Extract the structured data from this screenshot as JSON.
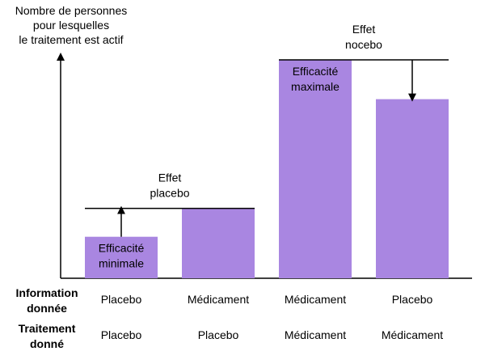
{
  "chart_data": {
    "type": "bar",
    "ylabel": [
      "Nombre de personnes",
      "pour lesquelles",
      "le traitement est actif"
    ],
    "bar_color": "#a986e1",
    "axis_color": "#000000",
    "ylim": [
      0,
      100
    ],
    "bars": [
      {
        "value": 19,
        "label": [
          "Efficacité",
          "minimale"
        ]
      },
      {
        "value": 32,
        "label": []
      },
      {
        "value": 100,
        "label": [
          "Efficacité",
          "maximale"
        ]
      },
      {
        "value": 82,
        "label": []
      }
    ],
    "rows": [
      {
        "label": [
          "Information",
          "donnée"
        ],
        "values": [
          "Placebo",
          "Médicament",
          "Médicament",
          "Placebo"
        ]
      },
      {
        "label": [
          "Traitement",
          "donné"
        ],
        "values": [
          "Placebo",
          "Placebo",
          "Médicament",
          "Médicament"
        ]
      }
    ],
    "annotations": [
      {
        "text": [
          "Effet",
          "placebo"
        ],
        "from_bar": 0,
        "to_bar": 1,
        "direction": "up"
      },
      {
        "text": [
          "Effet",
          "nocebo"
        ],
        "from_bar": 2,
        "to_bar": 3,
        "direction": "down"
      }
    ]
  }
}
